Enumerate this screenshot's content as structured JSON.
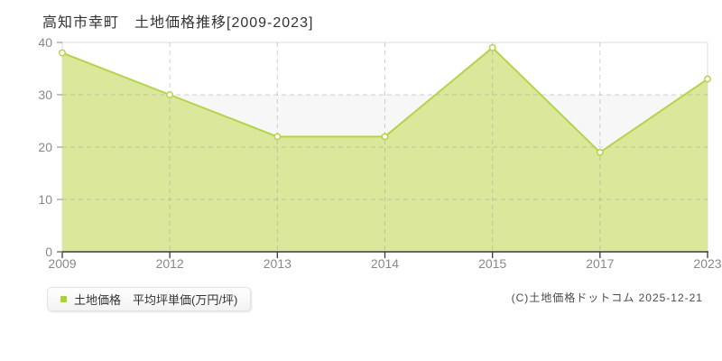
{
  "page": {
    "title": "高知市幸町　土地価格推移[2009-2023]",
    "legend_label": "土地価格　平均坪単価(万円/坪)",
    "copyright": "(C)土地価格ドットコム 2025-12-21"
  },
  "chart_data": {
    "type": "area",
    "title": "高知市幸町 土地価格推移[2009-2023]",
    "categories": [
      "2009",
      "2012",
      "2013",
      "2014",
      "2015",
      "2017",
      "2023"
    ],
    "series": [
      {
        "name": "土地価格 平均坪単価(万円/坪)",
        "values": [
          38,
          30,
          22,
          22,
          39,
          19,
          33
        ]
      }
    ],
    "xlabel": "",
    "ylabel": "",
    "unit": "万円/坪",
    "ylim": [
      0,
      40
    ],
    "yticks": [
      0,
      10,
      20,
      30,
      40
    ],
    "grid": "dashed",
    "legend_position": "bottom-left",
    "colors": {
      "line": "#b3d44a",
      "area_fill": "#dbe89b",
      "marker_fill": "#ffffff",
      "legend_marker": "#abd032",
      "grid": "#9a9a9a",
      "band_gray": "#f7f7f7",
      "band_white": "#ffffff",
      "axis": "#3a3a3a",
      "plot_border": "#dcdcdc",
      "tick": "#999999",
      "tick_label": "#888888",
      "title_text": "#333333",
      "copyright_text": "#4a4a4a"
    }
  }
}
